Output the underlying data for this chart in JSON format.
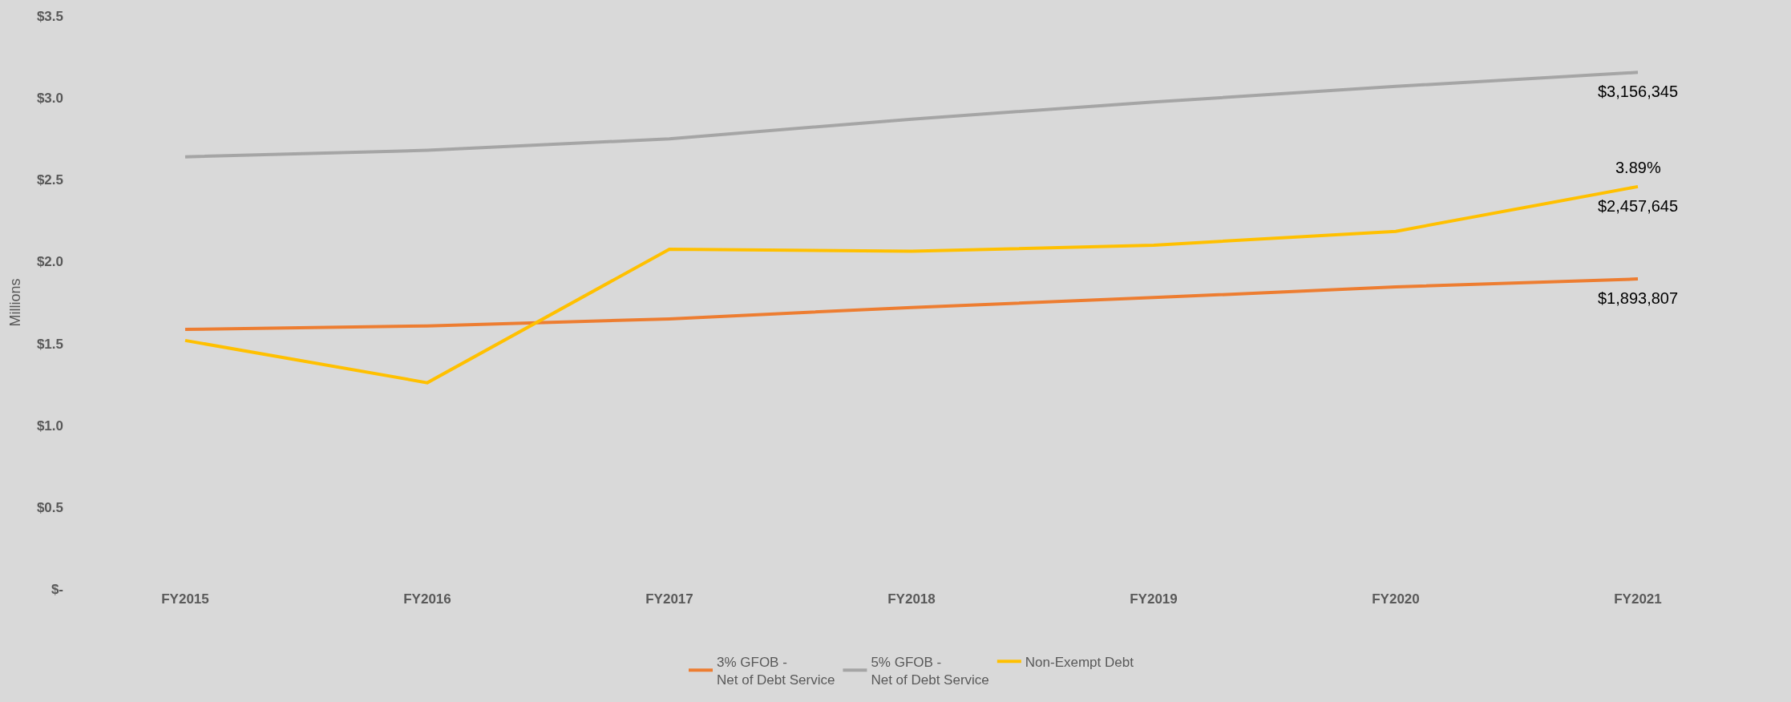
{
  "chart_data": {
    "type": "line",
    "ylabel": "Millions",
    "categories": [
      "FY2015",
      "FY2016",
      "FY2017",
      "FY2018",
      "FY2019",
      "FY2020",
      "FY2021"
    ],
    "series": [
      {
        "name": "3% GFOB -\nNet of Debt Service",
        "color": "#ed7d31",
        "values": [
          1.586,
          1.607,
          1.65,
          1.72,
          1.78,
          1.845,
          1.894
        ]
      },
      {
        "name": "5% GFOB -\nNet of Debt Service",
        "color": "#a5a5a5",
        "values": [
          2.64,
          2.68,
          2.75,
          2.87,
          2.975,
          3.07,
          3.156
        ]
      },
      {
        "name": "Non-Exempt Debt",
        "color": "#ffc000",
        "values": [
          1.518,
          1.26,
          2.076,
          2.063,
          2.1,
          2.185,
          2.458
        ]
      }
    ],
    "annotations": [
      {
        "text": "3.89%",
        "x": "FY2021",
        "y": 2.458
      },
      {
        "text": "$3,156,345",
        "x": "FY2021",
        "y": 3.156
      },
      {
        "text": "$2,457,645",
        "x": "FY2021",
        "y": 2.458
      },
      {
        "text": "$1,893,807",
        "x": "FY2021",
        "y": 1.894
      }
    ],
    "ylim": [
      0,
      3.5
    ],
    "yticks": [
      {
        "value": 0,
        "label": "$-"
      },
      {
        "value": 0.5,
        "label": "$0.5"
      },
      {
        "value": 1,
        "label": "$1.0"
      },
      {
        "value": 1.5,
        "label": "$1.5"
      },
      {
        "value": 2,
        "label": "$2.0"
      },
      {
        "value": 2.5,
        "label": "$2.5"
      },
      {
        "value": 3,
        "label": "$3.0"
      },
      {
        "value": 3.5,
        "label": "$3.5"
      }
    ],
    "grid": false,
    "legend": "bottom",
    "marker": "none",
    "line_style": "solid"
  }
}
